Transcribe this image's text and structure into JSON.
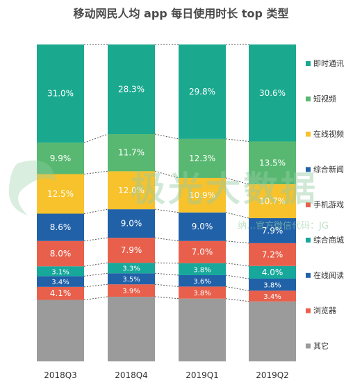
{
  "chart_data": {
    "type": "bar",
    "stacked": true,
    "percent": true,
    "title": "移动网民人均 app 每日使用时长 top 类型",
    "categories": [
      "2018Q3",
      "2018Q4",
      "2019Q1",
      "2019Q2"
    ],
    "series": [
      {
        "name": "其它",
        "color": "#9b9b9b",
        "values": [
          null,
          null,
          null,
          null
        ]
      },
      {
        "name": "浏览器",
        "color": "#e8604c",
        "values": [
          4.1,
          3.9,
          3.8,
          3.4
        ]
      },
      {
        "name": "在线阅读",
        "color": "#2161a8",
        "values": [
          3.4,
          3.5,
          3.6,
          3.8
        ]
      },
      {
        "name": "综合商城",
        "color": "#17a89b",
        "values": [
          3.1,
          3.3,
          3.8,
          4.0
        ]
      },
      {
        "name": "手机游戏",
        "color": "#e8604c",
        "values": [
          8.0,
          7.9,
          7.0,
          7.2
        ]
      },
      {
        "name": "综合新闻",
        "color": "#2161a8",
        "values": [
          8.6,
          9.0,
          9.0,
          7.9
        ]
      },
      {
        "name": "在线视频",
        "color": "#f7c22c",
        "values": [
          12.5,
          12.0,
          10.9,
          10.7
        ]
      },
      {
        "name": "短视频",
        "color": "#58b871",
        "values": [
          9.9,
          11.7,
          12.3,
          13.5
        ]
      },
      {
        "name": "即时通讯",
        "color": "#1aa98f",
        "values": [
          31.0,
          28.3,
          29.8,
          30.6
        ]
      }
    ],
    "data_labels": [
      [
        null,
        "4.1%",
        "3.4%",
        "3.1%",
        "8.0%",
        "8.6%",
        "12.5%",
        "9.9%",
        "31.0%"
      ],
      [
        null,
        "3.9%",
        "3.5%",
        "3.3%",
        "7.9%",
        "9.0%",
        "12.0%",
        "11.7%",
        "28.3%"
      ],
      [
        null,
        "3.8%",
        "3.6%",
        "3.8%",
        "7.0%",
        "9.0%",
        "10.9%",
        "12.3%",
        "29.8%"
      ],
      [
        null,
        "3.4%",
        "3.8%",
        "4.0%",
        "7.2%",
        "7.9%",
        "10.7%",
        "13.5%",
        "30.6%"
      ]
    ],
    "legend_position": "right",
    "connector_lines": "dotted",
    "grid": false
  },
  "watermark": {
    "main": "极光大数据",
    "sub": "纳…官方微信代码：JG"
  }
}
